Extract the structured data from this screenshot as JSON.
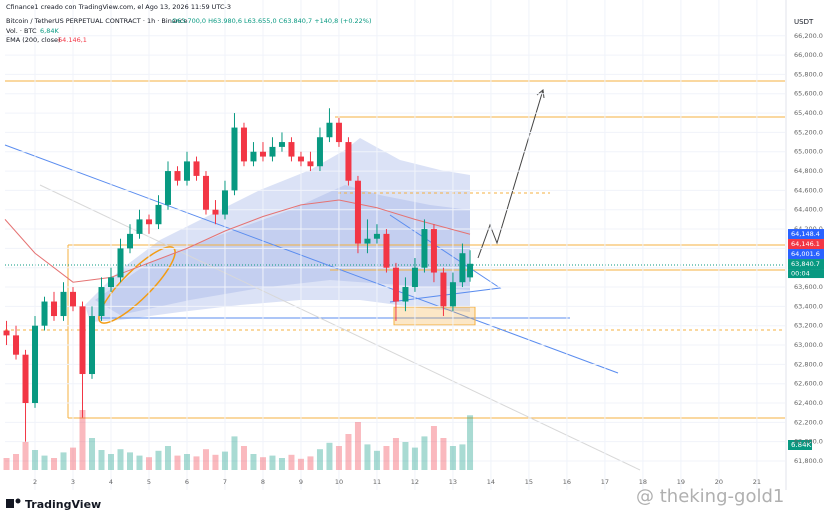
{
  "chart_data": {
    "type": "candlestick",
    "attribution": "Cfinance1 creado con TradingView.com, el Ago 13, 2026 11:59 UTC-3",
    "title": "Bitcoin / TetherUS PERPETUAL CONTRACT · 1h · Binance",
    "ohlc_text": "O63.700,0 H63.980,6 L63.655,0 C63.840,7 +140,8 (+0.22%)",
    "volume_legend": "Vol. · BTC",
    "volume_legend_value": "6,84K",
    "ema_legend": "EMA (200, close)",
    "ema_legend_value": "64.146,1",
    "y_unit": "USDT",
    "brand": "TradingView",
    "watermark": "@ theking-gold1",
    "up_color": "#089981",
    "down_color": "#f23645",
    "x": [
      1.25,
      1.5,
      1.75,
      2.0,
      2.25,
      2.5,
      2.75,
      3.0,
      3.25,
      3.5,
      3.75,
      4.0,
      4.25,
      4.5,
      4.75,
      5.0,
      5.25,
      5.5,
      5.75,
      6.0,
      6.25,
      6.5,
      6.75,
      7.0,
      7.25,
      7.5,
      7.75,
      8.0,
      8.25,
      8.5,
      8.75,
      9.0,
      9.25,
      9.5,
      9.75,
      10.0,
      10.25,
      10.5,
      10.75,
      11.0,
      11.25,
      11.5,
      11.75,
      12.0,
      12.25,
      12.5,
      12.75,
      13.0,
      13.25,
      13.45
    ],
    "open": [
      63150,
      63100,
      62900,
      62400,
      63200,
      63450,
      63300,
      63550,
      63400,
      62700,
      63300,
      63600,
      63700,
      64000,
      64150,
      64300,
      64250,
      64450,
      64800,
      64700,
      64900,
      64750,
      64400,
      64350,
      64600,
      65250,
      64900,
      65000,
      64950,
      65050,
      65100,
      64950,
      64900,
      64850,
      65150,
      65300,
      65100,
      64700,
      64050,
      64100,
      64150,
      63800,
      63450,
      63600,
      63800,
      64200,
      63750,
      63400,
      63650,
      63700
    ],
    "high": [
      63250,
      63200,
      62950,
      63300,
      63500,
      63550,
      63650,
      63600,
      63450,
      63400,
      63700,
      63800,
      64100,
      64250,
      64400,
      64350,
      64550,
      64900,
      64850,
      65000,
      64950,
      64800,
      64500,
      64700,
      65400,
      65300,
      65100,
      65100,
      65150,
      65200,
      65150,
      65000,
      65000,
      65250,
      65450,
      65350,
      65150,
      64750,
      64300,
      64250,
      64200,
      63850,
      63700,
      63900,
      64300,
      64250,
      63800,
      63750,
      64050,
      63980.6
    ],
    "low": [
      63000,
      62850,
      62000,
      62350,
      63150,
      63250,
      63250,
      63350,
      62250,
      62650,
      63250,
      63550,
      63650,
      63950,
      64100,
      64150,
      64200,
      64400,
      64650,
      64650,
      64700,
      64350,
      64250,
      64300,
      64550,
      64850,
      64850,
      64900,
      64900,
      65000,
      64900,
      64850,
      64800,
      64800,
      65100,
      65050,
      64650,
      63950,
      63950,
      64050,
      63750,
      63250,
      63350,
      63550,
      63750,
      63650,
      63300,
      63350,
      63600,
      63655
    ],
    "close": [
      63100,
      62900,
      62400,
      63200,
      63450,
      63300,
      63550,
      63400,
      62700,
      63300,
      63600,
      63700,
      64000,
      64150,
      64300,
      64250,
      64450,
      64800,
      64700,
      64900,
      64750,
      64400,
      64350,
      64600,
      65250,
      64900,
      65000,
      64950,
      65050,
      65100,
      64950,
      64900,
      64850,
      65150,
      65300,
      65100,
      64700,
      64050,
      64100,
      64150,
      63800,
      63450,
      63600,
      63800,
      64200,
      63750,
      63400,
      63650,
      63950,
      63840.7
    ],
    "volume": [
      1.5,
      2.0,
      3.5,
      2.5,
      1.8,
      1.5,
      2.2,
      2.8,
      7.5,
      4.0,
      2.5,
      2.0,
      2.6,
      2.2,
      1.8,
      1.6,
      2.4,
      3.0,
      1.8,
      2.0,
      1.7,
      2.6,
      1.9,
      2.3,
      4.2,
      3.0,
      2.0,
      1.6,
      1.8,
      1.5,
      1.9,
      1.4,
      1.7,
      2.6,
      3.4,
      3.0,
      4.5,
      6.0,
      3.2,
      2.4,
      3.0,
      4.0,
      3.5,
      2.8,
      4.2,
      5.5,
      4.0,
      3.0,
      3.2,
      6.84
    ],
    "ema": {
      "x": [
        1.21,
        2,
        3,
        4,
        5,
        6,
        7,
        8,
        9,
        10,
        11,
        12,
        13.45
      ],
      "values": [
        64300,
        63950,
        63650,
        63700,
        63850,
        64000,
        64180,
        64330,
        64450,
        64500,
        64420,
        64300,
        64146.1
      ],
      "color": "#e57373"
    },
    "xlim": [
      1.21,
      21.74
    ],
    "xticks": [
      2,
      3,
      4,
      5,
      6,
      7,
      8,
      9,
      10,
      11,
      12,
      13,
      14,
      15,
      16,
      17,
      18,
      19,
      20,
      21
    ],
    "ylim": [
      61500,
      66570
    ],
    "yticks": [
      {
        "value": 61800,
        "label": "61,800.0"
      },
      {
        "value": 62000,
        "label": "62,000.0"
      },
      {
        "value": 62200,
        "label": "62,200.0"
      },
      {
        "value": 62400,
        "label": "62,400.0"
      },
      {
        "value": 62600,
        "label": "62,600.0"
      },
      {
        "value": 62800,
        "label": "62,800.0"
      },
      {
        "value": 63000,
        "label": "63,000.0"
      },
      {
        "value": 63200,
        "label": "63,200.0"
      },
      {
        "value": 63400,
        "label": "63,400.0"
      },
      {
        "value": 63600,
        "label": "63,600.0"
      },
      {
        "value": 63800,
        "label": "63,800.0"
      },
      {
        "value": 64000,
        "label": "64,000.0"
      },
      {
        "value": 64200,
        "label": "64,200.0"
      },
      {
        "value": 64400,
        "label": "64,400.0"
      },
      {
        "value": 64600,
        "label": "64,600.0"
      },
      {
        "value": 64800,
        "label": "64,800.0"
      },
      {
        "value": 65000,
        "label": "65,000.0"
      },
      {
        "value": 65200,
        "label": "65,200.0"
      },
      {
        "value": 65400,
        "label": "65,400.0"
      },
      {
        "value": 65600,
        "label": "65,600.0"
      },
      {
        "value": 65800,
        "label": "65,800.0"
      },
      {
        "value": 66000,
        "label": "66,000.0"
      },
      {
        "value": 66200,
        "label": "66,200.0"
      }
    ],
    "grid": true,
    "price_labels": [
      {
        "value": 64148.4,
        "label": "64,148.4",
        "color": "#2962ff"
      },
      {
        "value": 64146.1,
        "label": "64,146.1",
        "color": "#f23645"
      },
      {
        "value": 64001.6,
        "label": "64,001.6",
        "color": "#2962ff"
      },
      {
        "value": 63840.7,
        "label": "63,840.7",
        "color": "#089981"
      }
    ],
    "countdown": "00:04",
    "volume_label": "6.84K"
  }
}
